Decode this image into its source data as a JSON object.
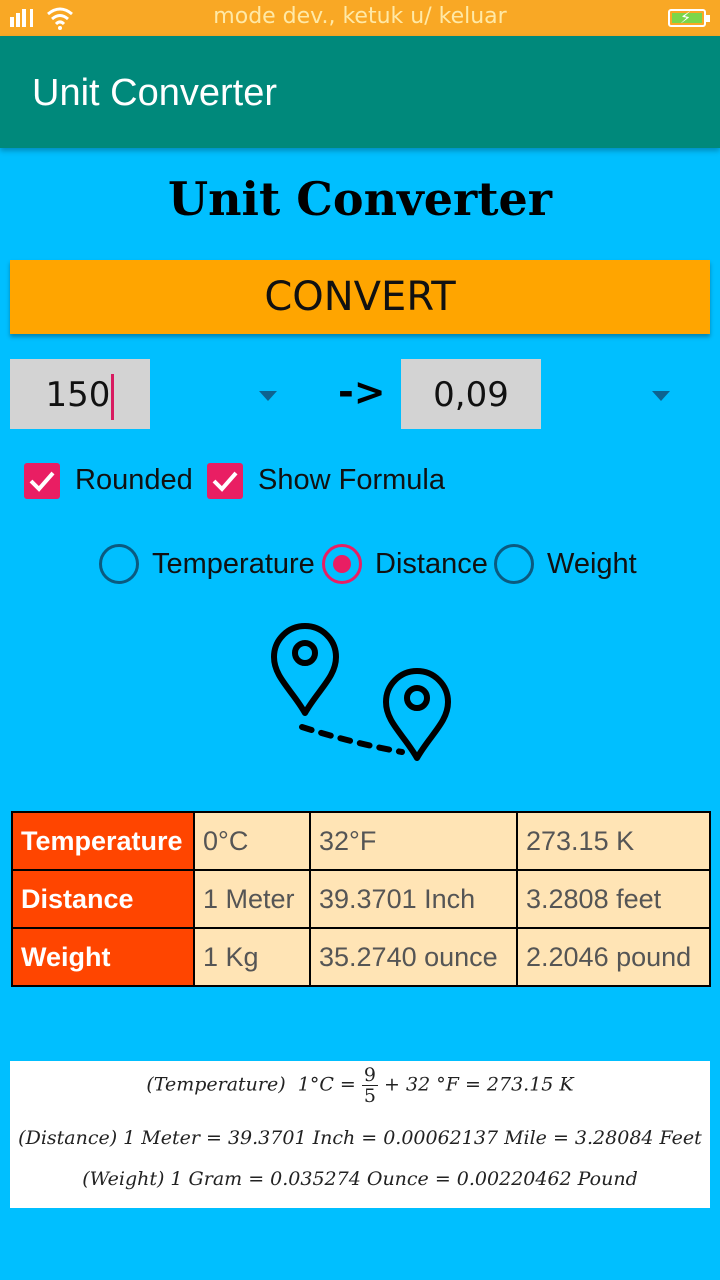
{
  "status_bar": {
    "dev_text": "mode dev., ketuk u/ keluar"
  },
  "app_bar": {
    "title": "Unit Converter"
  },
  "page": {
    "heading": "Unit Converter"
  },
  "convert_button": {
    "label": "CONVERT"
  },
  "converter": {
    "input_value": "150",
    "arrow": "->",
    "output_value": "0,09"
  },
  "options": {
    "rounded_label": "Rounded",
    "rounded_checked": true,
    "show_formula_label": "Show Formula",
    "show_formula_checked": true
  },
  "unit_type": {
    "temperature_label": "Temperature",
    "distance_label": "Distance",
    "weight_label": "Weight",
    "selected": "Distance"
  },
  "reference_table": {
    "rows": [
      {
        "header": "Temperature",
        "values": [
          "0°C",
          "32°F",
          "273.15 K"
        ]
      },
      {
        "header": "Distance",
        "values": [
          "1 Meter",
          "39.3701 Inch",
          "3.2808 feet"
        ]
      },
      {
        "header": "Weight",
        "values": [
          "1 Kg",
          "35.2740 ounce",
          "2.2046 pound"
        ]
      }
    ]
  },
  "formulas": {
    "temp_prefix": "(Temperature)",
    "temp_lhs": "1°C =",
    "temp_num": "9",
    "temp_den": "5",
    "temp_rhs": "+ 32 °F = 273.15 K",
    "distance": "(Distance) 1 Meter = 39.3701 Inch = 0.00062137 Mile =  3.28084 Feet",
    "weight": "(Weight) 1 Gram = 0.035274 Ounce = 0.00220462 Pound"
  },
  "colors": {
    "background": "#00bfff",
    "app_bar": "#00897b",
    "status_bar": "#f9a825",
    "convert_button": "#ffa500",
    "accent": "#e91e63",
    "table_header": "#ff4500",
    "table_cell": "#ffe4b5"
  },
  "icons": [
    "signal-icon",
    "wifi-icon",
    "battery-icon",
    "dropdown-arrow-icon",
    "checkbox-checked-icon",
    "radio-icon",
    "map-pin-distance-icon"
  ]
}
